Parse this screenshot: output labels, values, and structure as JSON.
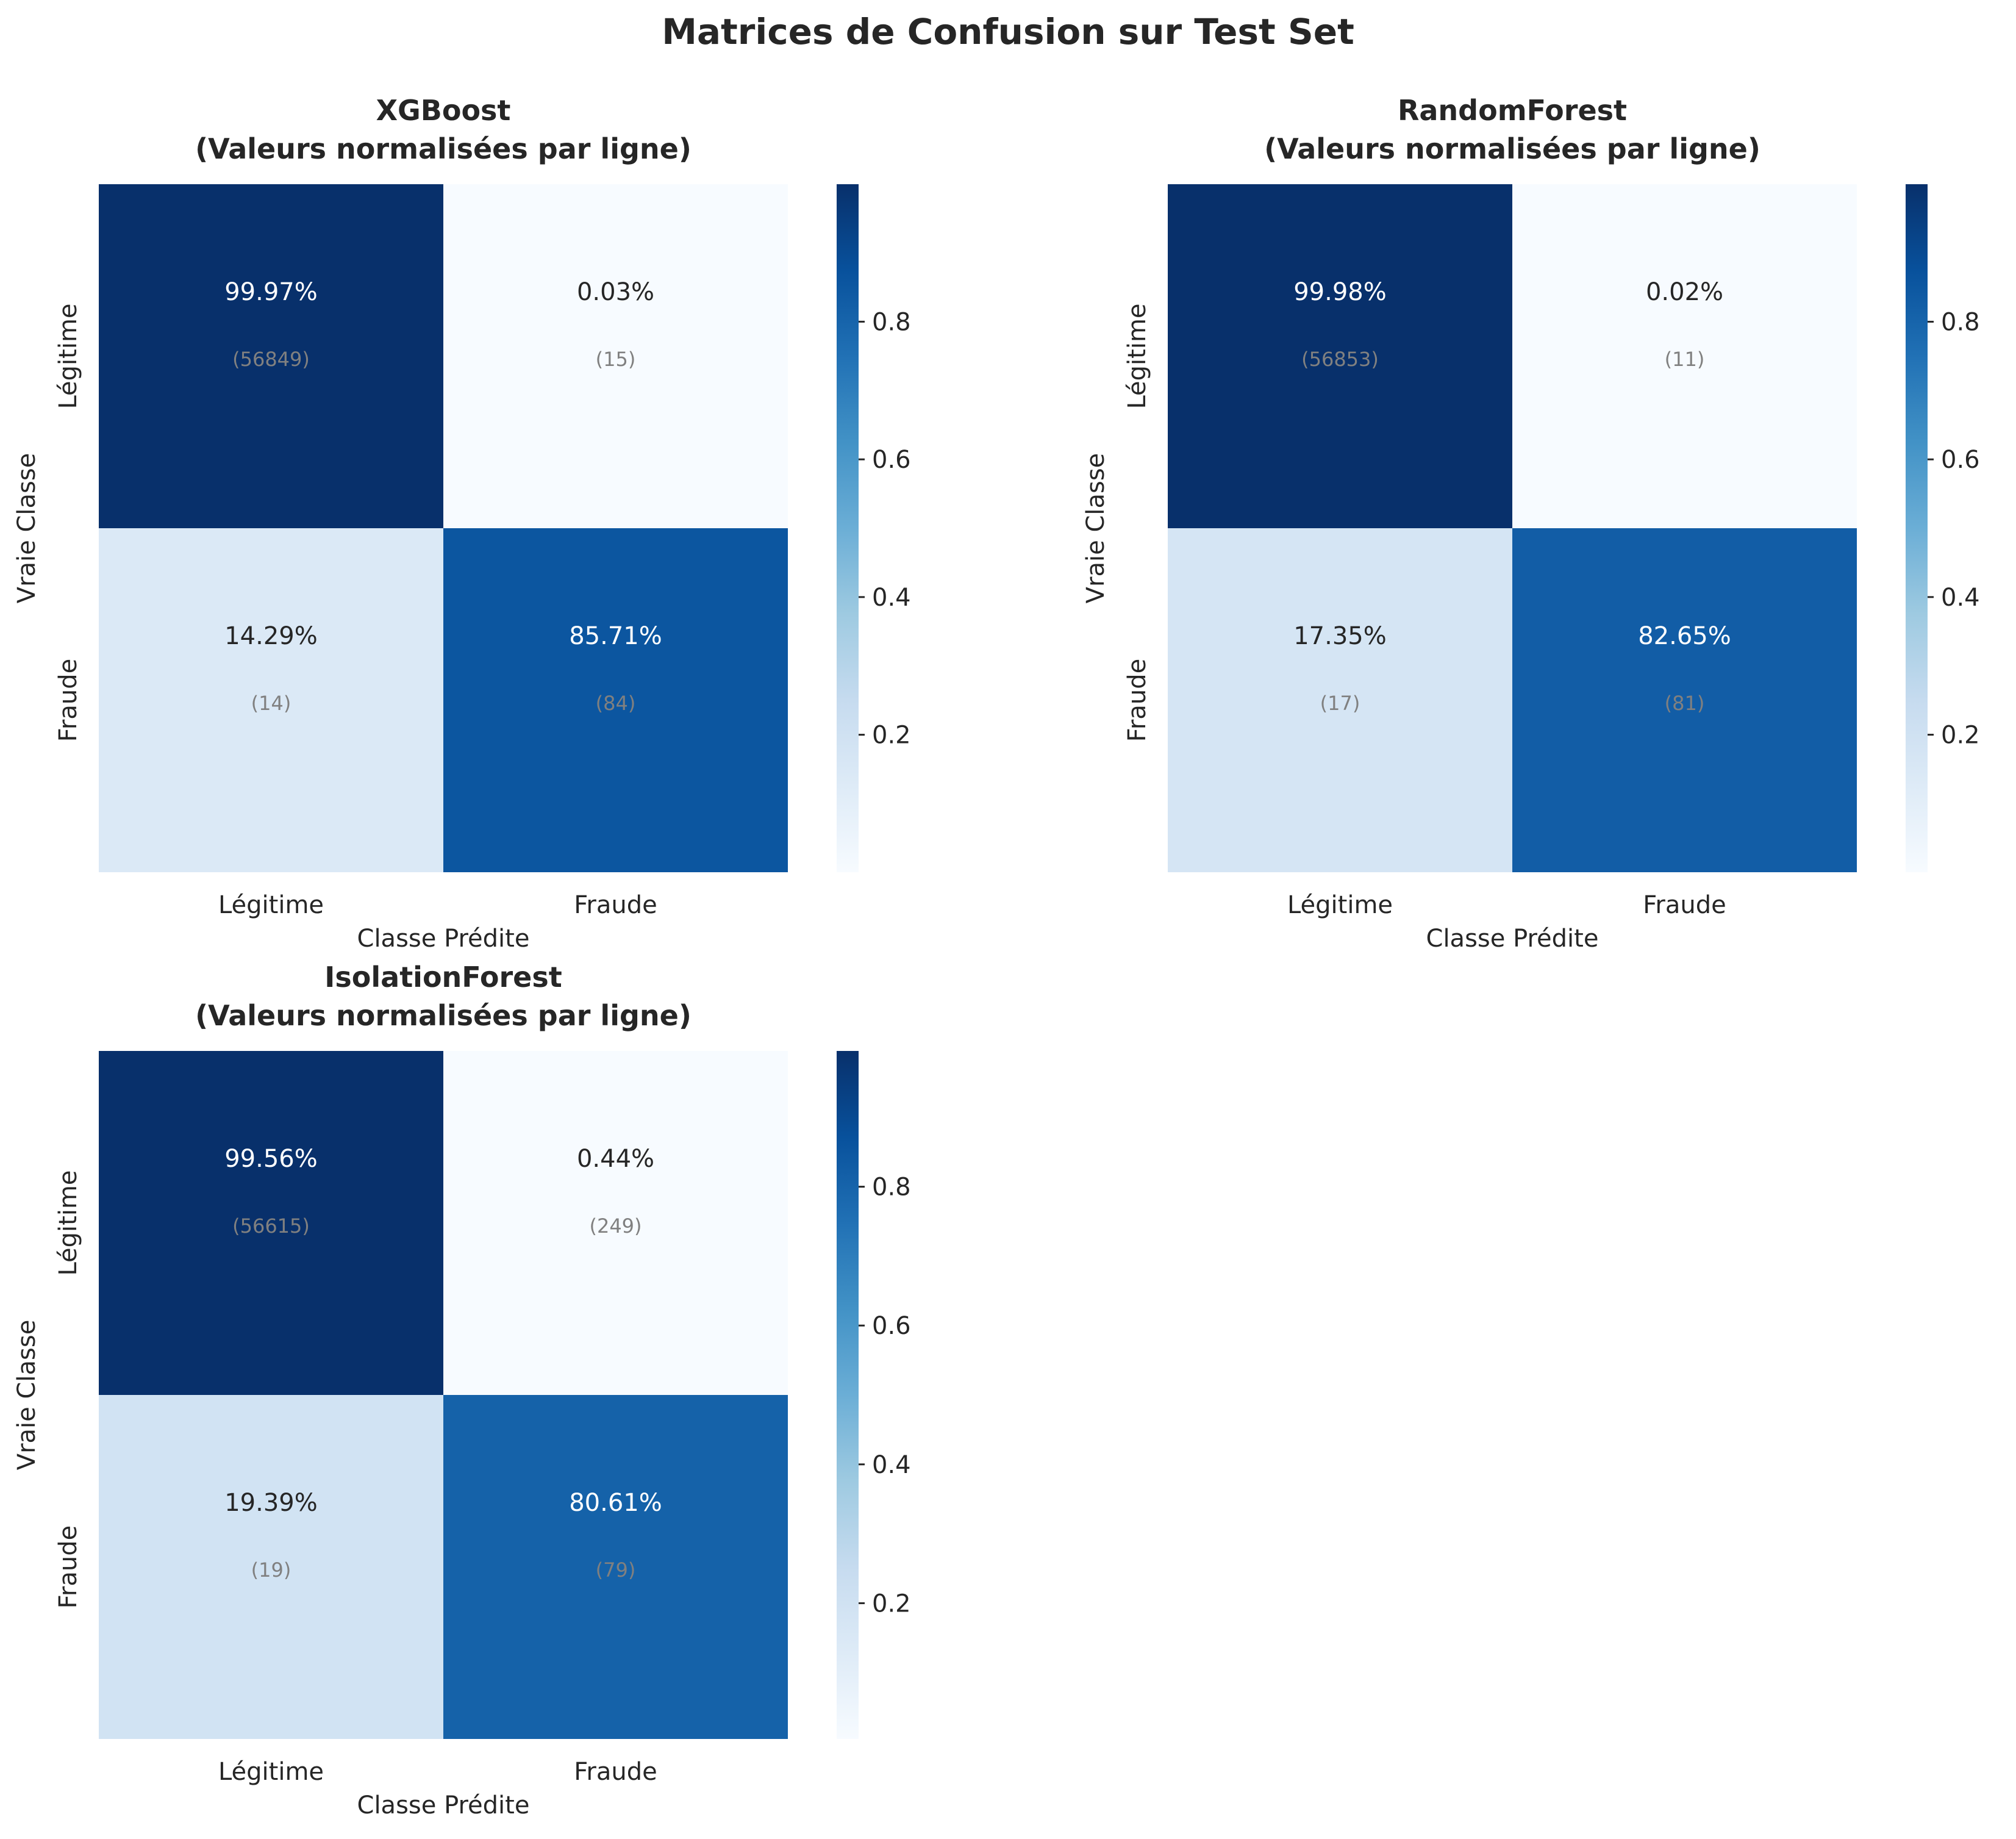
{
  "figure": {
    "suptitle": "Matrices de Confusion sur Test Set"
  },
  "chart_data": [
    {
      "type": "heatmap",
      "title": "XGBoost\n(Valeurs normalisées par ligne)",
      "xlabel": "Classe Prédite",
      "ylabel": "Vraie Classe",
      "x_categories": [
        "Légitime",
        "Fraude"
      ],
      "y_categories": [
        "Légitime",
        "Fraude"
      ],
      "normalized": [
        [
          0.9997,
          0.0003
        ],
        [
          0.1429,
          0.8571
        ]
      ],
      "percent_labels": [
        [
          "99.97%",
          "0.03%"
        ],
        [
          "14.29%",
          "85.71%"
        ]
      ],
      "count_labels": [
        [
          "(56849)",
          "(15)"
        ],
        [
          "(14)",
          "(84)"
        ]
      ],
      "counts": [
        [
          56849,
          15
        ],
        [
          14,
          84
        ]
      ],
      "colorbar": {
        "ticks": [
          "0.2",
          "0.4",
          "0.6",
          "0.8"
        ],
        "tick_values": [
          0.2,
          0.4,
          0.6,
          0.8
        ],
        "range": [
          0.0003,
          0.9997
        ]
      }
    },
    {
      "type": "heatmap",
      "title": "RandomForest\n(Valeurs normalisées par ligne)",
      "xlabel": "Classe Prédite",
      "ylabel": "Vraie Classe",
      "x_categories": [
        "Légitime",
        "Fraude"
      ],
      "y_categories": [
        "Légitime",
        "Fraude"
      ],
      "normalized": [
        [
          0.9998,
          0.0002
        ],
        [
          0.1735,
          0.8265
        ]
      ],
      "percent_labels": [
        [
          "99.98%",
          "0.02%"
        ],
        [
          "17.35%",
          "82.65%"
        ]
      ],
      "count_labels": [
        [
          "(56853)",
          "(11)"
        ],
        [
          "(17)",
          "(81)"
        ]
      ],
      "counts": [
        [
          56853,
          11
        ],
        [
          17,
          81
        ]
      ],
      "colorbar": {
        "ticks": [
          "0.2",
          "0.4",
          "0.6",
          "0.8"
        ],
        "tick_values": [
          0.2,
          0.4,
          0.6,
          0.8
        ],
        "range": [
          0.0002,
          0.9998
        ]
      }
    },
    {
      "type": "heatmap",
      "title": "IsolationForest\n(Valeurs normalisées par ligne)",
      "xlabel": "Classe Prédite",
      "ylabel": "Vraie Classe",
      "x_categories": [
        "Légitime",
        "Fraude"
      ],
      "y_categories": [
        "Légitime",
        "Fraude"
      ],
      "normalized": [
        [
          0.9956,
          0.0044
        ],
        [
          0.1939,
          0.8061
        ]
      ],
      "percent_labels": [
        [
          "99.56%",
          "0.44%"
        ],
        [
          "19.39%",
          "80.61%"
        ]
      ],
      "count_labels": [
        [
          "(56615)",
          "(249)"
        ],
        [
          "(19)",
          "(79)"
        ]
      ],
      "counts": [
        [
          56615,
          249
        ],
        [
          19,
          79
        ]
      ],
      "colorbar": {
        "ticks": [
          "0.2",
          "0.4",
          "0.6",
          "0.8"
        ],
        "tick_values": [
          0.2,
          0.4,
          0.6,
          0.8
        ],
        "range": [
          0.0044,
          0.9956
        ]
      }
    }
  ],
  "colors": {
    "colormap": "Blues",
    "text_dark": "#262626",
    "count_text": "#808080",
    "cell_text_light": "#ffffff",
    "cell_text_dark": "#262626"
  }
}
